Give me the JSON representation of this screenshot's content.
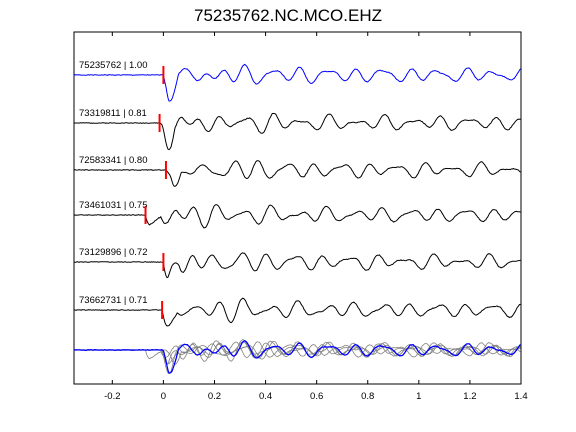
{
  "chart_data": {
    "type": "line",
    "title": "75235762.NC.MCO.EHZ",
    "xlim": [
      -0.35,
      1.4
    ],
    "xticks": [
      -0.2,
      0,
      0.2,
      0.4,
      0.6,
      0.8,
      1,
      1.2,
      1.4
    ],
    "xtick_labels": [
      "-0.2",
      "0",
      "0.2",
      "0.4",
      "0.6",
      "0.8",
      "1",
      "1.2",
      "1.4"
    ],
    "grid": false,
    "traces": [
      {
        "label": "75235762 | 1.00",
        "pick_time": 0.0,
        "color": "#0000ff",
        "seed": 1
      },
      {
        "label": "73319811 | 0.81",
        "pick_time": -0.015,
        "color": "#000000",
        "seed": 2
      },
      {
        "label": "72583341 | 0.80",
        "pick_time": 0.01,
        "color": "#000000",
        "seed": 3
      },
      {
        "label": "73461031 | 0.75",
        "pick_time": -0.07,
        "color": "#000000",
        "seed": 4
      },
      {
        "label": "73129896 | 0.72",
        "pick_time": 0.0,
        "color": "#000000",
        "seed": 5
      },
      {
        "label": "73662731 | 0.71",
        "pick_time": -0.005,
        "color": "#000000",
        "seed": 6
      }
    ],
    "pick_color": "#ff0000",
    "stack_reference_color": "#0000ff",
    "stack_overlay_color": "#808080"
  }
}
